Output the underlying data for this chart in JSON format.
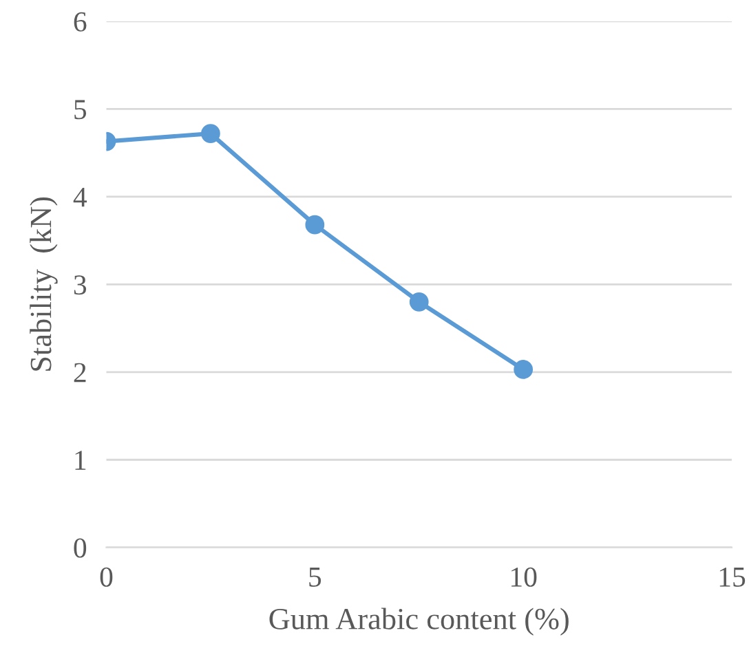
{
  "chart_data": {
    "type": "line",
    "xlabel": "Gum Arabic content (%)",
    "ylabel": "Stability  (kN)",
    "x": [
      0,
      2.5,
      5,
      7.5,
      10
    ],
    "series": [
      {
        "color": "#5b9bd5",
        "values": [
          4.63,
          4.72,
          3.68,
          2.8,
          2.03
        ]
      }
    ],
    "xlim": [
      0,
      15
    ],
    "xticks": [
      0,
      5,
      10,
      15
    ],
    "ylim": [
      0,
      6
    ],
    "yticks": [
      0,
      1,
      2,
      3,
      4,
      5,
      6
    ],
    "grid": "y",
    "marker": "circle",
    "line_style": "solid",
    "legend": false
  }
}
